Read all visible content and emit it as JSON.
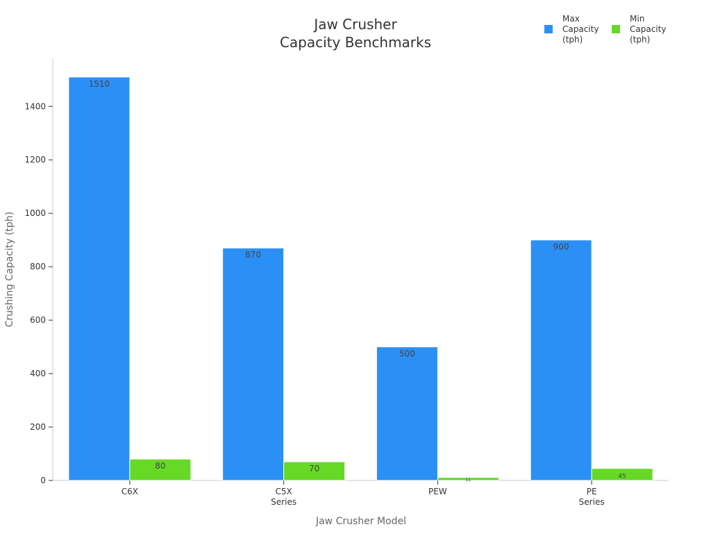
{
  "chart_data": {
    "type": "bar",
    "title_lines": [
      "Jaw Crusher",
      "Capacity Benchmarks"
    ],
    "xlabel": "Jaw Crusher Model",
    "ylabel": "Crushing Capacity (tph)",
    "categories": [
      [
        "C6X"
      ],
      [
        "C5X",
        "Series"
      ],
      [
        "PEW"
      ],
      [
        "PE",
        "Series"
      ]
    ],
    "series": [
      {
        "name_lines": [
          "Max",
          "Capacity",
          "(tph)"
        ],
        "color": "#2b90f5",
        "values": [
          1510,
          870,
          500,
          900
        ]
      },
      {
        "name_lines": [
          "Min",
          "Capacity",
          "(tph)"
        ],
        "color": "#66d926",
        "values": [
          80,
          70,
          11,
          45
        ]
      }
    ],
    "ylim": [
      0,
      1580
    ],
    "yticks": [
      0,
      200,
      400,
      600,
      800,
      1000,
      1200,
      1400
    ],
    "grid": false,
    "legend_position": "top-right"
  }
}
